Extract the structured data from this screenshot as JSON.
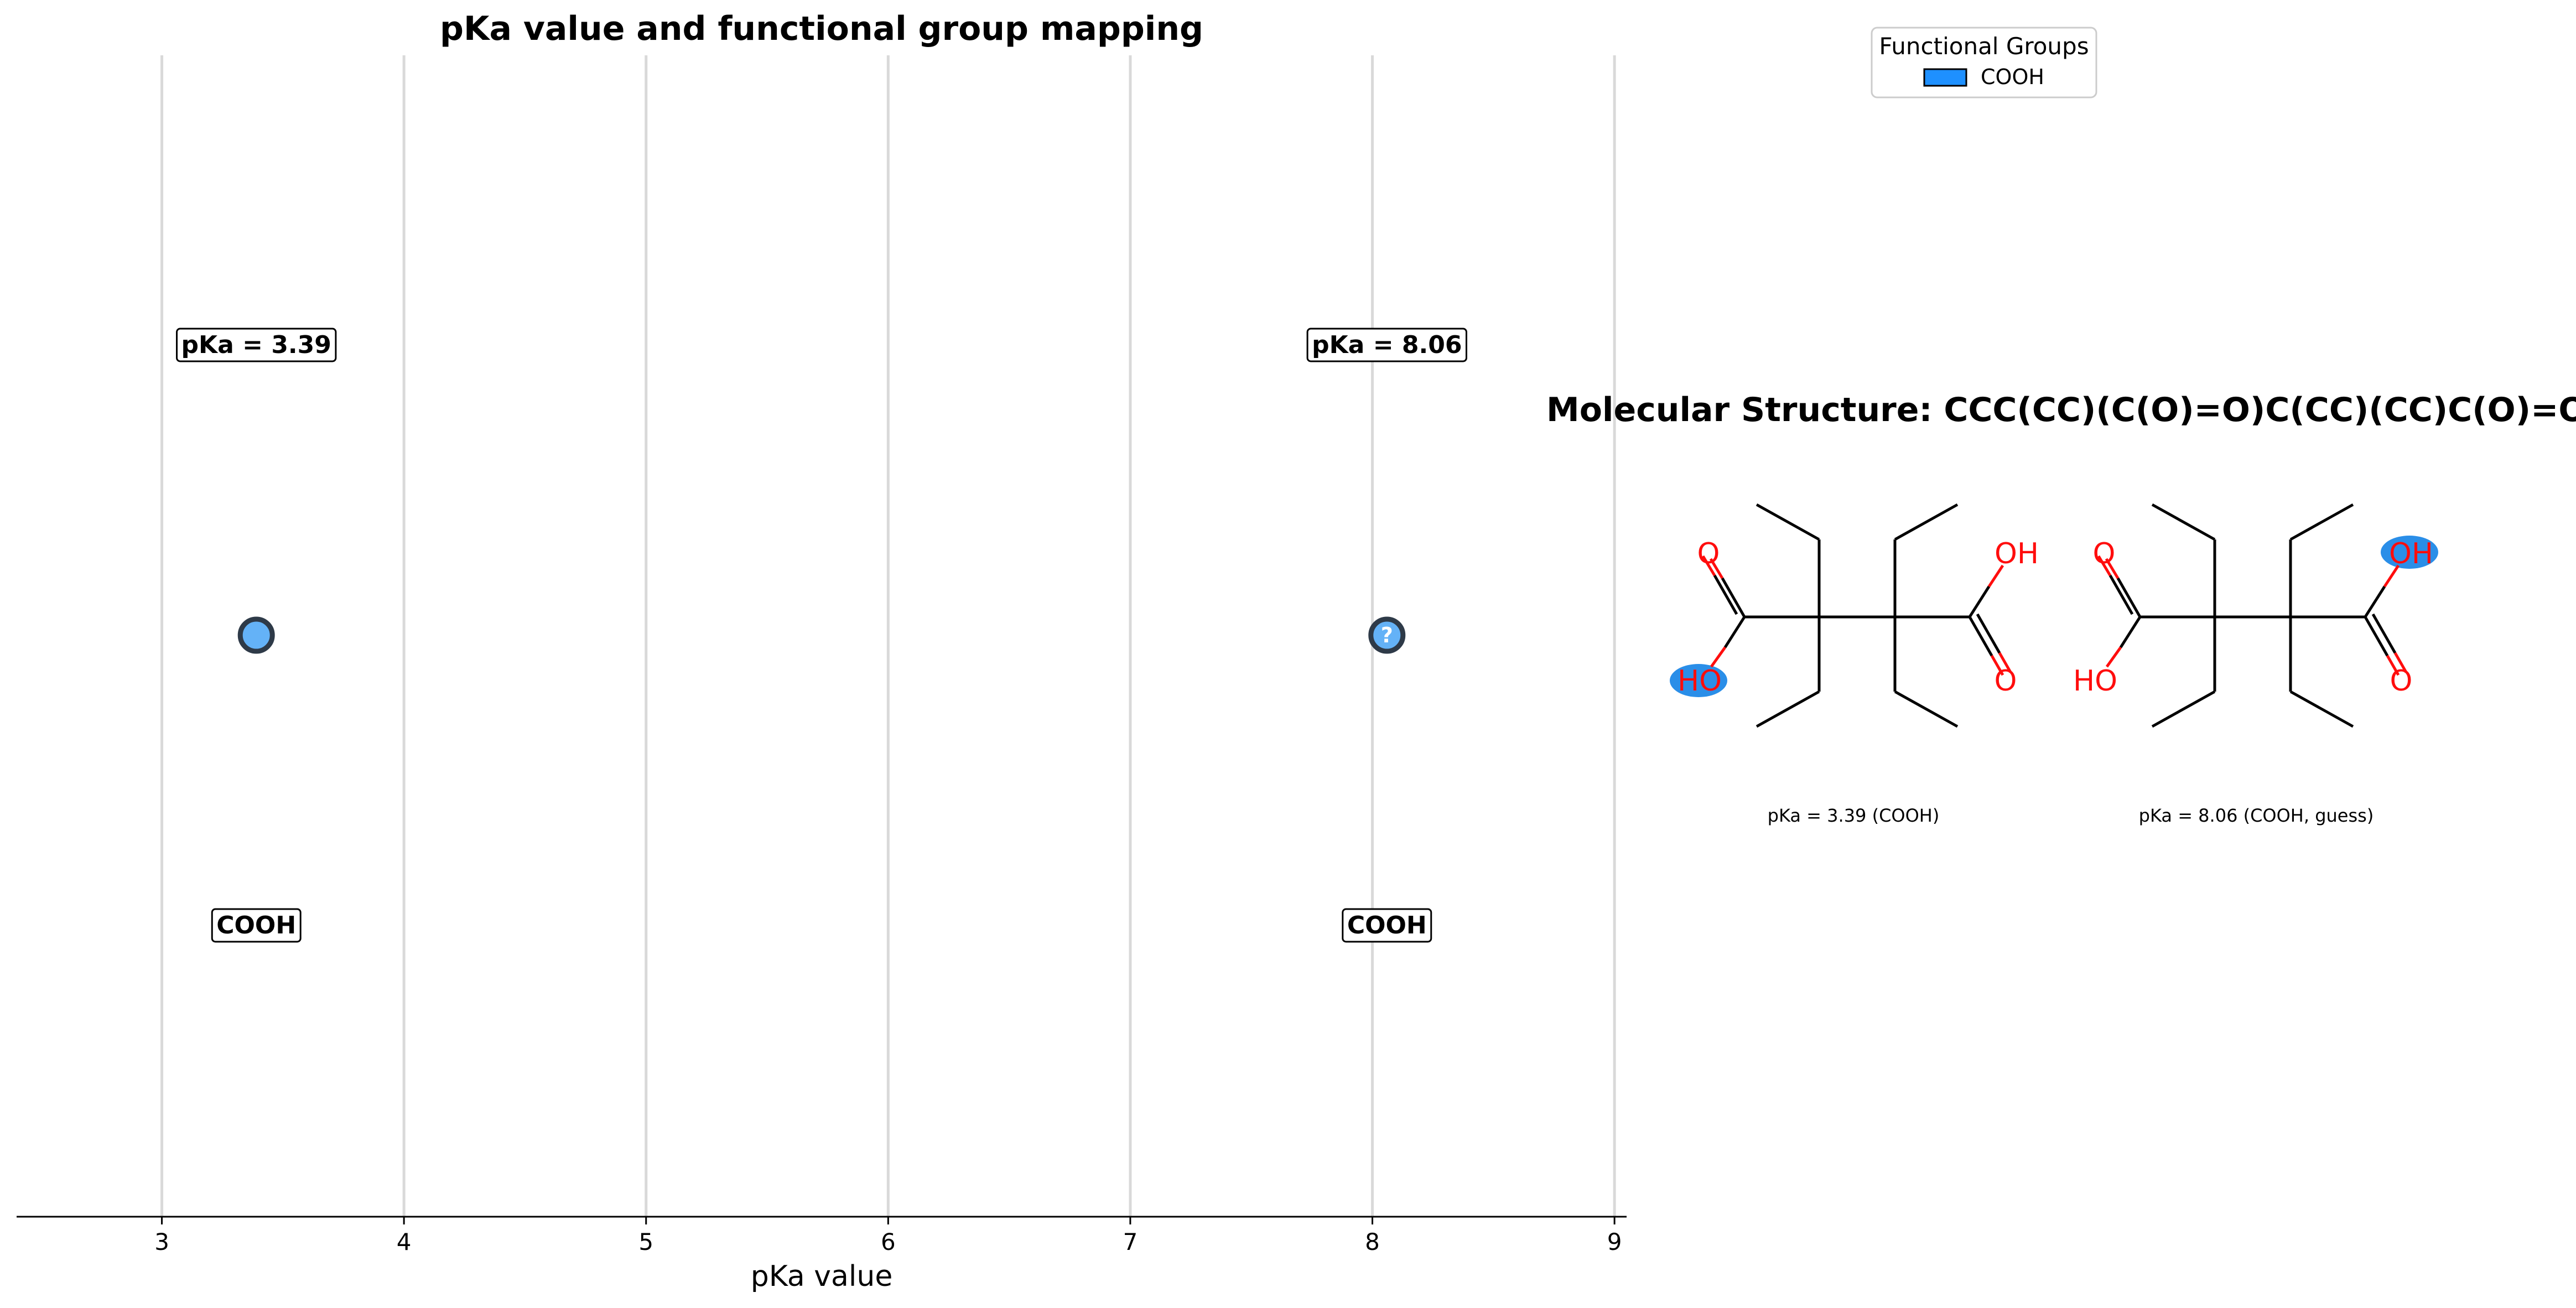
{
  "chart_data": {
    "type": "scatter",
    "title": "pKa value and functional group mapping",
    "xlabel": "pKa value",
    "ylabel": "",
    "xlim": [
      2.4,
      9.05
    ],
    "xticks": [
      3,
      4,
      5,
      6,
      7,
      8,
      9
    ],
    "grid": "vertical",
    "points": [
      {
        "x": 3.39,
        "pka_label": "pKa = 3.39",
        "group": "COOH",
        "guess": false,
        "marker": ""
      },
      {
        "x": 8.06,
        "pka_label": "pKa = 8.06",
        "group": "COOH",
        "guess": true,
        "marker": "?"
      }
    ],
    "colors": {
      "point_fill": "#64b2f7",
      "point_edge": "#2e3a48",
      "legend_patch": "#1e90ff",
      "highlight": "#2a8ee8",
      "heteroatom": "#ff0d0d",
      "grid": "#d9d9d9"
    }
  },
  "legend": {
    "title": "Functional Groups",
    "entries": [
      {
        "label": "COOH",
        "color": "#1e90ff"
      }
    ]
  },
  "molecule": {
    "title": "Molecular Structure: CCC(CC)(C(O)=O)C(CC)(CC)C(O)=O",
    "atoms": {
      "O": "O",
      "OH": "OH",
      "HO": "HO"
    },
    "captions": [
      "pKa = 3.39 (COOH)",
      "pKa = 8.06 (COOH, guess)"
    ]
  }
}
